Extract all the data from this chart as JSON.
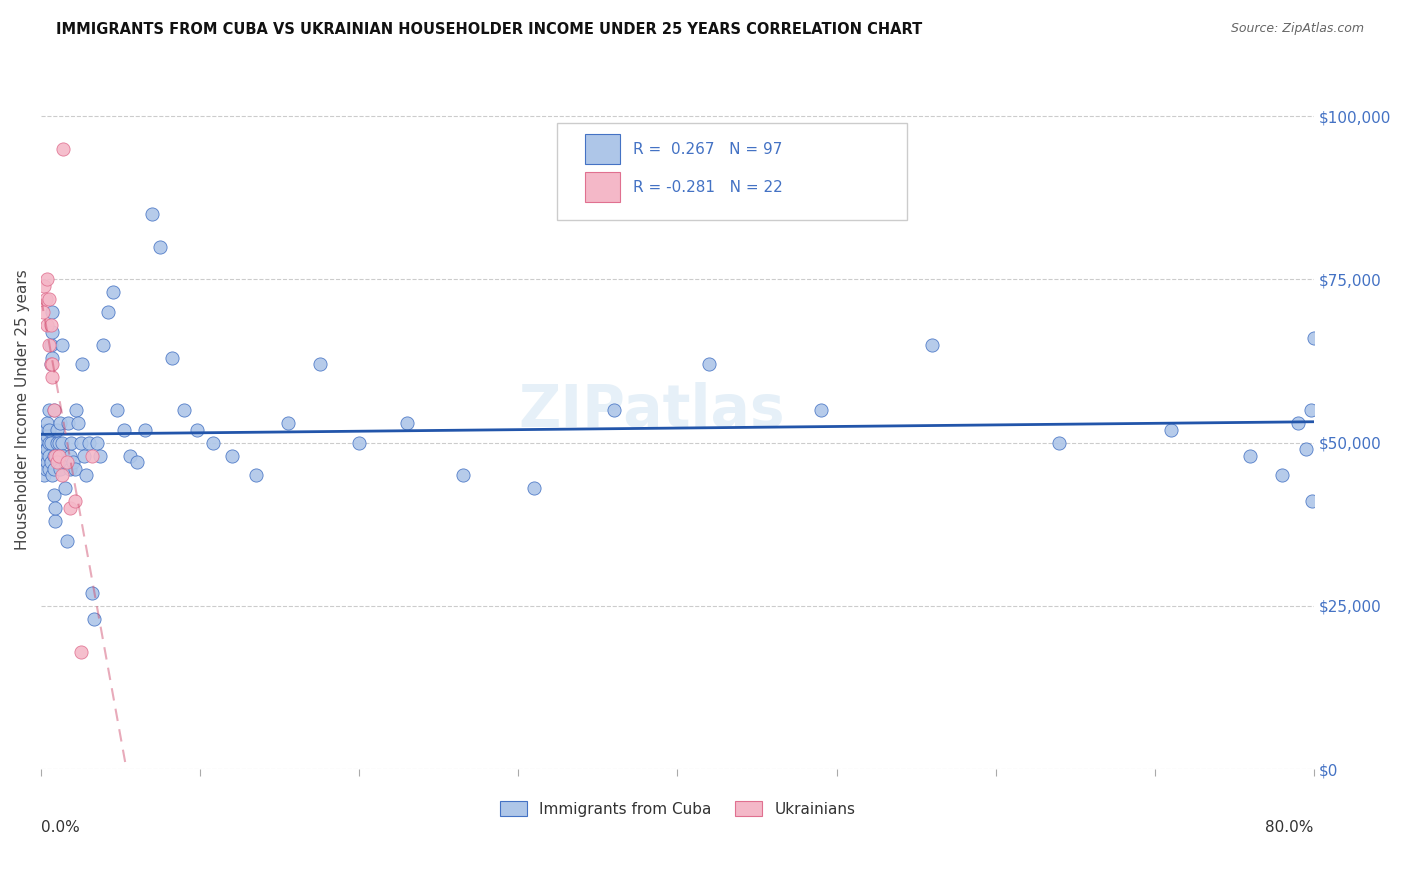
{
  "title": "IMMIGRANTS FROM CUBA VS UKRAINIAN HOUSEHOLDER INCOME UNDER 25 YEARS CORRELATION CHART",
  "source": "Source: ZipAtlas.com",
  "ylabel": "Householder Income Under 25 years",
  "ytick_values": [
    0,
    25000,
    50000,
    75000,
    100000
  ],
  "ytick_labels": [
    "$0",
    "$25,000",
    "$50,000",
    "$75,000",
    "$100,000"
  ],
  "legend_label1": "Immigrants from Cuba",
  "legend_label2": "Ukrainians",
  "r_cuba": 0.267,
  "n_cuba": 97,
  "r_ukr": -0.281,
  "n_ukr": 22,
  "cuba_fill": "#aec6e8",
  "ukr_fill": "#f4b8c8",
  "cuba_edge": "#4472c4",
  "ukr_edge": "#e07090",
  "cuba_line": "#2255aa",
  "ukr_line": "#cc4466",
  "watermark": "ZIPatlas",
  "cuba_x": [
    0.001,
    0.001,
    0.002,
    0.002,
    0.002,
    0.003,
    0.003,
    0.003,
    0.003,
    0.004,
    0.004,
    0.004,
    0.004,
    0.005,
    0.005,
    0.005,
    0.005,
    0.005,
    0.006,
    0.006,
    0.006,
    0.006,
    0.007,
    0.007,
    0.007,
    0.007,
    0.008,
    0.008,
    0.008,
    0.008,
    0.009,
    0.009,
    0.01,
    0.01,
    0.01,
    0.011,
    0.011,
    0.012,
    0.012,
    0.013,
    0.013,
    0.014,
    0.015,
    0.015,
    0.016,
    0.017,
    0.018,
    0.018,
    0.019,
    0.02,
    0.021,
    0.022,
    0.023,
    0.025,
    0.026,
    0.027,
    0.028,
    0.03,
    0.032,
    0.033,
    0.035,
    0.037,
    0.039,
    0.042,
    0.045,
    0.048,
    0.052,
    0.056,
    0.06,
    0.065,
    0.07,
    0.075,
    0.082,
    0.09,
    0.098,
    0.108,
    0.12,
    0.135,
    0.155,
    0.175,
    0.2,
    0.23,
    0.265,
    0.31,
    0.36,
    0.42,
    0.49,
    0.56,
    0.64,
    0.71,
    0.76,
    0.78,
    0.79,
    0.795,
    0.798,
    0.799,
    0.8
  ],
  "cuba_y": [
    51000,
    48000,
    50000,
    47000,
    45000,
    49000,
    52000,
    46000,
    48000,
    51000,
    47000,
    53000,
    49000,
    50000,
    48000,
    55000,
    46000,
    52000,
    47000,
    50000,
    62000,
    65000,
    70000,
    67000,
    45000,
    63000,
    46000,
    42000,
    55000,
    48000,
    38000,
    40000,
    50000,
    52000,
    48000,
    47000,
    50000,
    53000,
    46000,
    65000,
    50000,
    48000,
    43000,
    47000,
    35000,
    53000,
    48000,
    46000,
    50000,
    47000,
    46000,
    55000,
    53000,
    50000,
    62000,
    48000,
    45000,
    50000,
    27000,
    23000,
    50000,
    48000,
    65000,
    70000,
    73000,
    55000,
    52000,
    48000,
    47000,
    52000,
    85000,
    80000,
    63000,
    55000,
    52000,
    50000,
    48000,
    45000,
    53000,
    62000,
    50000,
    53000,
    45000,
    43000,
    55000,
    62000,
    55000,
    65000,
    50000,
    52000,
    48000,
    45000,
    53000,
    49000,
    55000,
    41000,
    66000
  ],
  "ukr_x": [
    0.001,
    0.002,
    0.003,
    0.004,
    0.004,
    0.005,
    0.005,
    0.006,
    0.006,
    0.007,
    0.007,
    0.008,
    0.009,
    0.01,
    0.011,
    0.013,
    0.014,
    0.016,
    0.018,
    0.021,
    0.025,
    0.032
  ],
  "ukr_y": [
    70000,
    74000,
    72000,
    75000,
    68000,
    65000,
    72000,
    62000,
    68000,
    60000,
    62000,
    55000,
    48000,
    47000,
    48000,
    45000,
    95000,
    47000,
    40000,
    41000,
    18000,
    48000
  ]
}
